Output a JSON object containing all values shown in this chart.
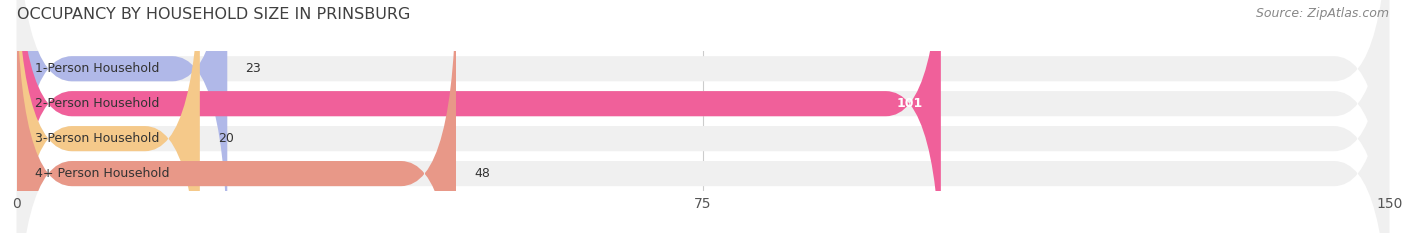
{
  "title": "OCCUPANCY BY HOUSEHOLD SIZE IN PRINSBURG",
  "source": "Source: ZipAtlas.com",
  "categories": [
    "1-Person Household",
    "2-Person Household",
    "3-Person Household",
    "4+ Person Household"
  ],
  "values": [
    23,
    101,
    20,
    48
  ],
  "bar_colors": [
    "#b0b8e8",
    "#f0609a",
    "#f5c98a",
    "#e89888"
  ],
  "bar_bg_color": "#e8e8e8",
  "xlim": [
    0,
    150
  ],
  "xticks": [
    0,
    75,
    150
  ],
  "label_colors": [
    "#444444",
    "#ffffff",
    "#444444",
    "#444444"
  ],
  "title_fontsize": 11.5,
  "source_fontsize": 9,
  "tick_fontsize": 10,
  "bar_label_fontsize": 9,
  "category_fontsize": 9,
  "bar_height": 0.72,
  "bg_color": "#ffffff",
  "row_bg_color": "#f0f0f0",
  "rounding_size": 6
}
